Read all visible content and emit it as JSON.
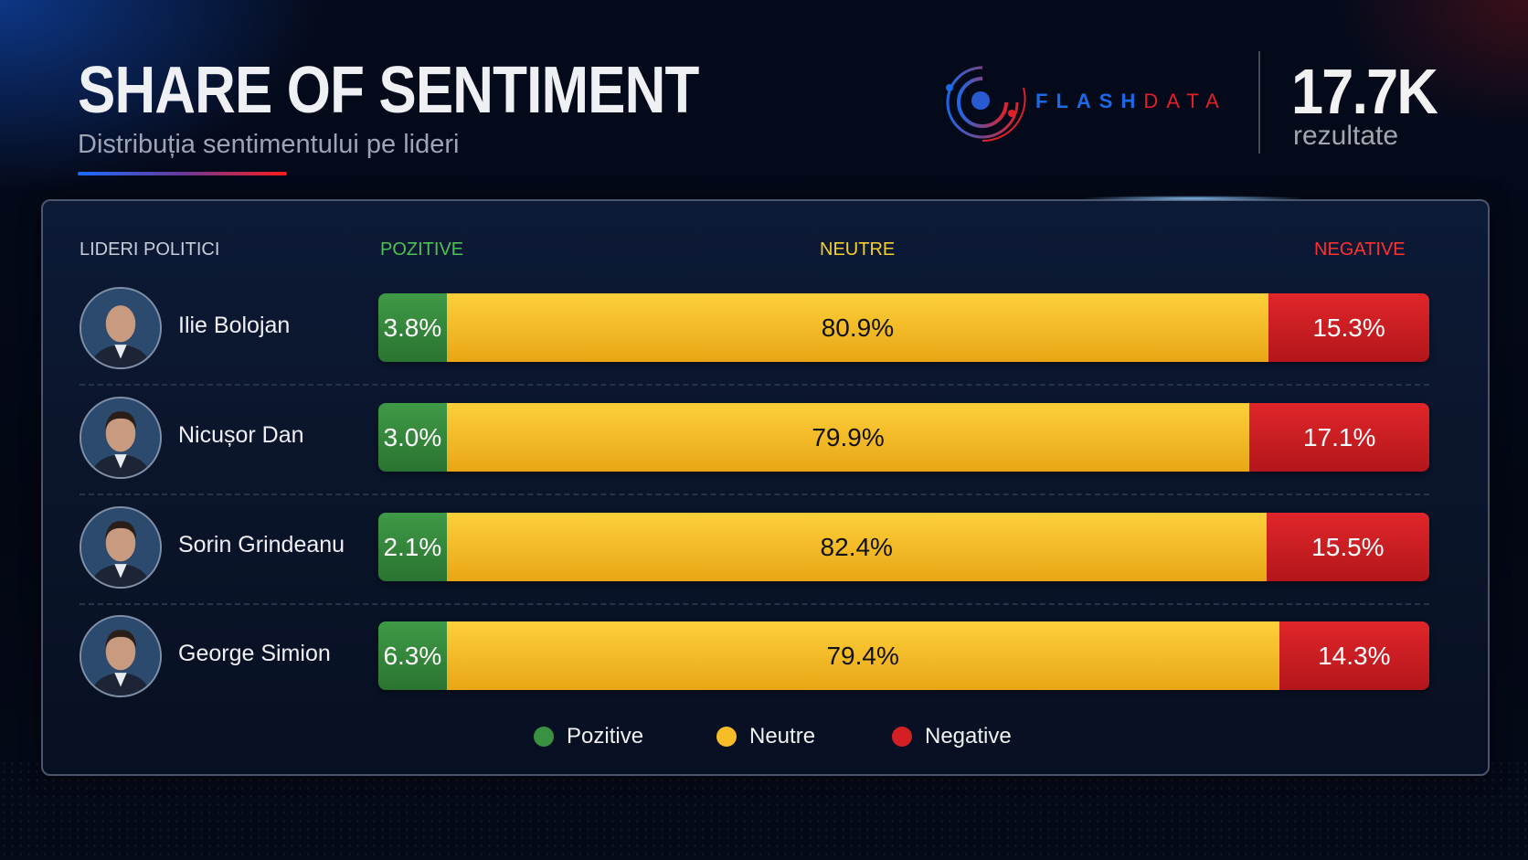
{
  "header": {
    "title": "SHARE OF SENTIMENT",
    "subtitle": "Distribuția sentimentului pe lideri"
  },
  "brand": {
    "part1": "FLASH",
    "part2": "DATA",
    "colors": {
      "blue": "#1a6ae8",
      "red": "#e0202a"
    }
  },
  "stats": {
    "count": "17.7K",
    "label": "rezultate"
  },
  "chart_data": {
    "type": "bar",
    "stacked": true,
    "orientation": "horizontal",
    "normalized_percent": true,
    "column_headers": {
      "leaders": "LIDERI POLITICI",
      "positive": "POZITIVE",
      "neutral": "NEUTRE",
      "negative": "NEGATIVE"
    },
    "categories": [
      "Ilie Bolojan",
      "Nicușor Dan",
      "Sorin Grindeanu",
      "George Simion"
    ],
    "series": [
      {
        "name": "Pozitive",
        "color": "#3a9142",
        "values": [
          3.8,
          3.0,
          2.1,
          6.3
        ],
        "labels": [
          "3.8%",
          "3.0%",
          "2.1%",
          "6.3%"
        ]
      },
      {
        "name": "Neutre",
        "color": "#f6bd27",
        "values": [
          80.9,
          79.9,
          82.4,
          79.4
        ],
        "labels": [
          "80.9%",
          "79.9%",
          "82.4%",
          "79.4%"
        ]
      },
      {
        "name": "Negative",
        "color": "#d41f24",
        "values": [
          15.3,
          17.1,
          15.5,
          14.3
        ],
        "labels": [
          "15.3%",
          "17.1%",
          "15.5%",
          "14.3%"
        ]
      }
    ],
    "legend": {
      "placement": "bottom",
      "items": [
        "Pozitive",
        "Neutre",
        "Negative"
      ]
    }
  }
}
